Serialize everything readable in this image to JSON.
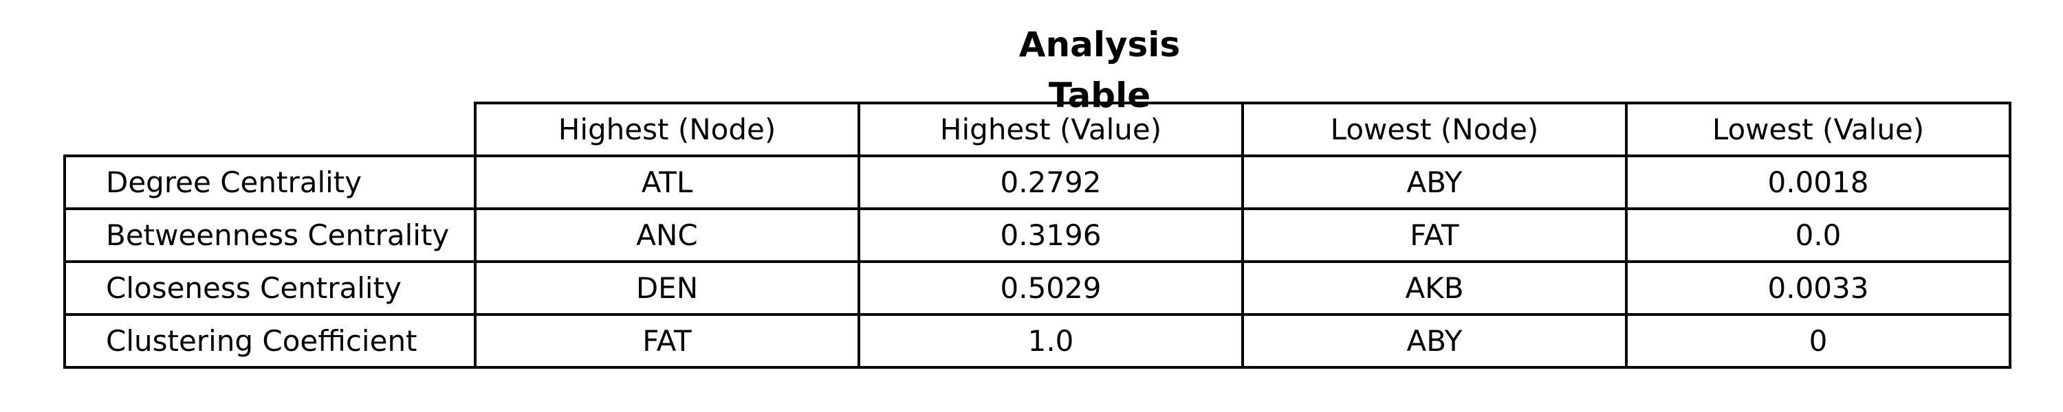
{
  "chart_data": {
    "type": "table",
    "title": "Analysis Table",
    "columns": [
      "Highest (Node)",
      "Highest (Value)",
      "Lowest (Node)",
      "Lowest (Value)"
    ],
    "rows": [
      {
        "label": "Degree Centrality",
        "cells": [
          "ATL",
          "0.2792",
          "ABY",
          "0.0018"
        ]
      },
      {
        "label": "Betweenness Centrality",
        "cells": [
          "ANC",
          "0.3196",
          "FAT",
          "0.0"
        ]
      },
      {
        "label": "Closeness Centrality",
        "cells": [
          "DEN",
          "0.5029",
          "AKB",
          "0.0033"
        ]
      },
      {
        "label": "Clustering Coefficient",
        "cells": [
          "FAT",
          "1.0",
          "ABY",
          "0"
        ]
      }
    ]
  }
}
